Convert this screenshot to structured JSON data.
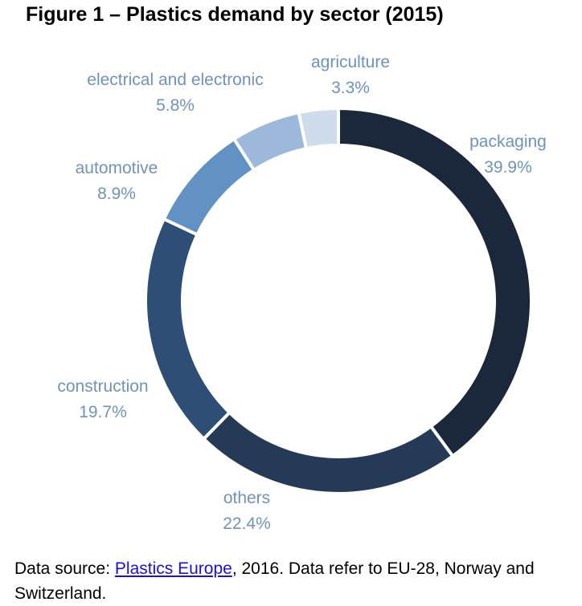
{
  "title": "Figure 1 – Plastics demand by sector (2015)",
  "chart_data": {
    "type": "pie",
    "variant": "donut",
    "slices": [
      {
        "label": "packaging",
        "pct_label": "39.9%",
        "value": 39.9,
        "color": "#1b283c"
      },
      {
        "label": "others",
        "pct_label": "22.4%",
        "value": 22.4,
        "color": "#253a57"
      },
      {
        "label": "construction",
        "pct_label": "19.7%",
        "value": 19.7,
        "color": "#2f4e76"
      },
      {
        "label": "automotive",
        "pct_label": "8.9%",
        "value": 8.9,
        "color": "#6291c4"
      },
      {
        "label": "electrical and electronic",
        "pct_label": "5.8%",
        "value": 5.8,
        "color": "#9cb8da"
      },
      {
        "label": "agriculture",
        "pct_label": "3.3%",
        "value": 3.3,
        "color": "#cfdcec"
      }
    ],
    "label_color": "#6e93bd"
  },
  "footer": {
    "prefix": "Data source: ",
    "link_text": "Plastics Europe",
    "suffix": ", 2016. Data refer to EU-28, Norway and Switzerland."
  }
}
